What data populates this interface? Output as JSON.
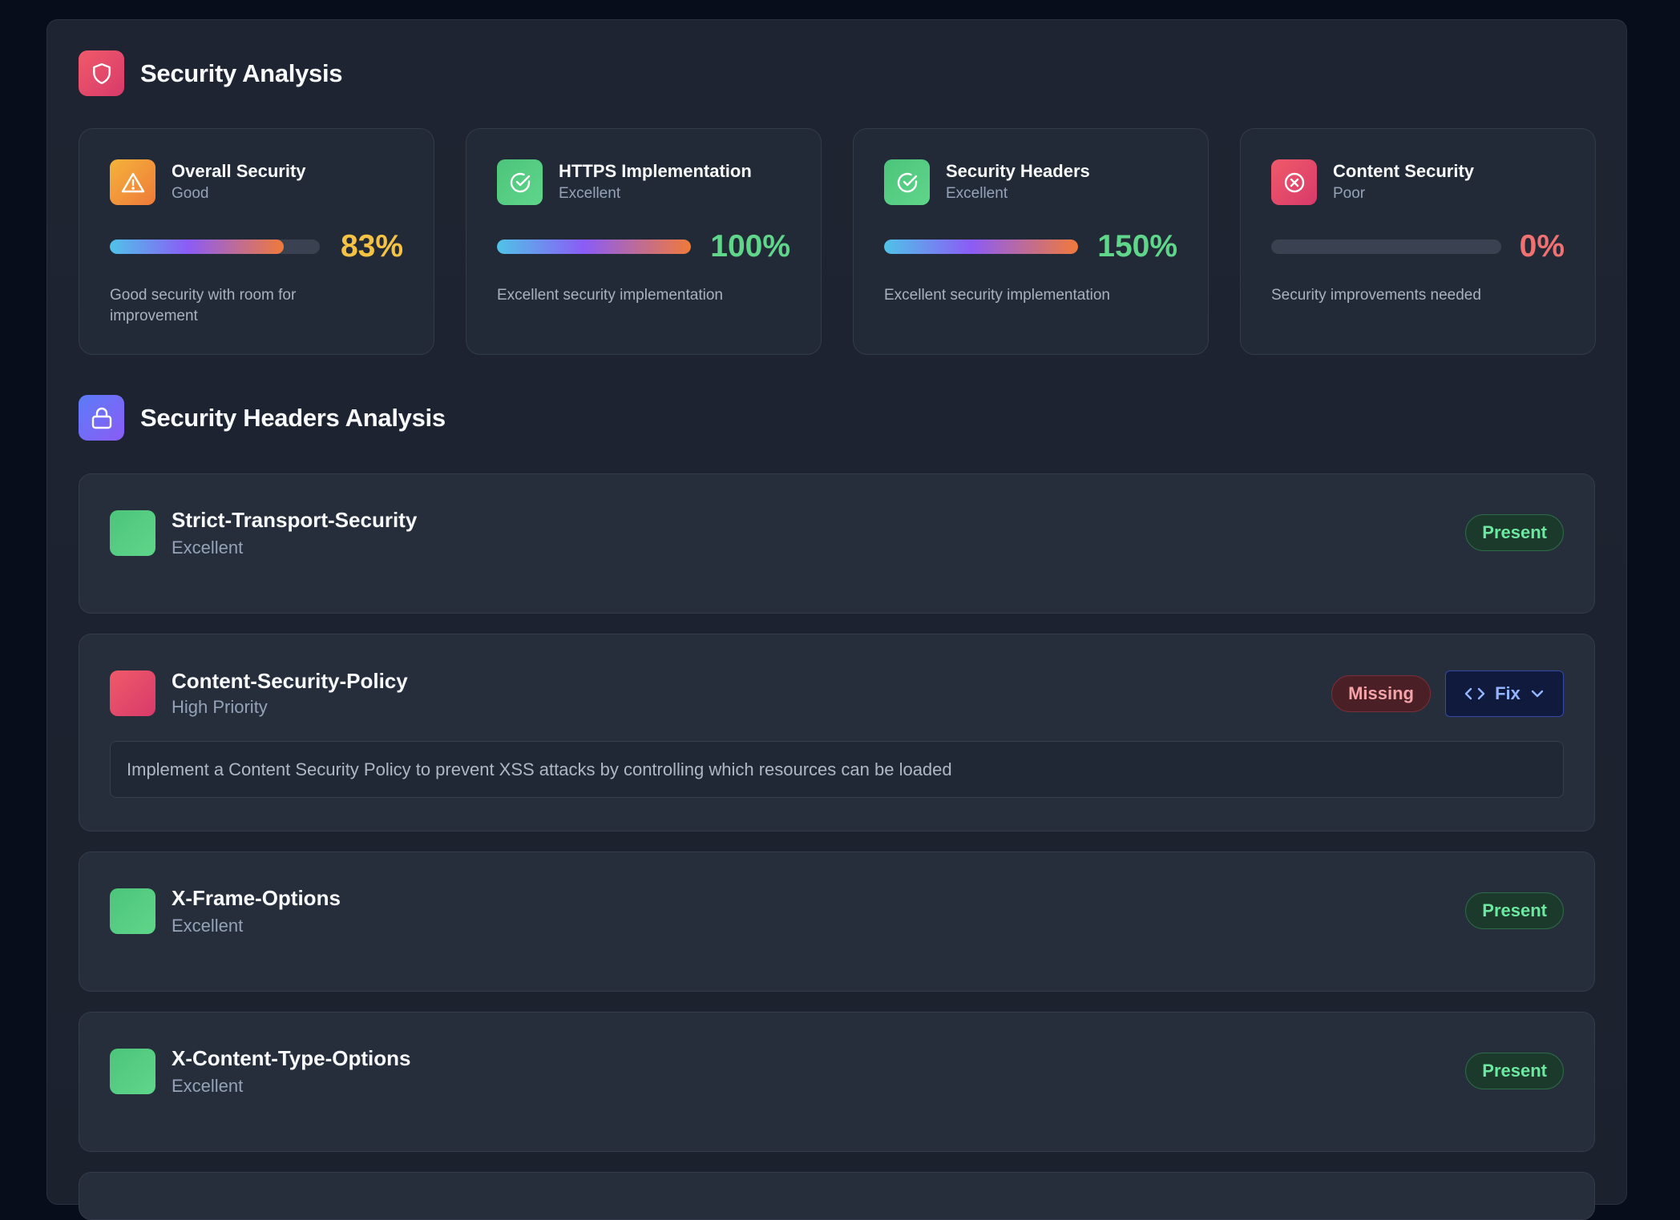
{
  "analysis": {
    "title": "Security Analysis",
    "icon": "shield-icon",
    "accent": "#e0445e"
  },
  "metrics": [
    {
      "name": "Overall Security",
      "rating": "Good",
      "percent": "83%",
      "fill_fraction": 0.83,
      "description": "Good security with room for improvement",
      "icon": "alert-triangle-icon",
      "color": "#f6c244"
    },
    {
      "name": "HTTPS Implementation",
      "rating": "Excellent",
      "percent": "100%",
      "fill_fraction": 1.0,
      "description": "Excellent security implementation",
      "icon": "check-circle-icon",
      "color": "#5fd68a"
    },
    {
      "name": "Security Headers",
      "rating": "Excellent",
      "percent": "150%",
      "fill_fraction": 1.0,
      "description": "Excellent security implementation",
      "icon": "check-circle-icon",
      "color": "#5fd68a"
    },
    {
      "name": "Content Security",
      "rating": "Poor",
      "percent": "0%",
      "fill_fraction": 0.0,
      "description": "Security improvements needed",
      "icon": "x-circle-icon",
      "color": "#f07171"
    }
  ],
  "headers_section": {
    "title": "Security Headers Analysis",
    "icon": "lock-icon",
    "accent": "#7c5cf0"
  },
  "headers": [
    {
      "name": "Strict-Transport-Security",
      "status_text": "Excellent",
      "badge": "Present",
      "state": "present"
    },
    {
      "name": "Content-Security-Policy",
      "status_text": "High Priority",
      "badge": "Missing",
      "state": "missing",
      "fix_label": "Fix",
      "recommendation": "Implement a Content Security Policy to prevent XSS attacks by controlling which resources can be loaded"
    },
    {
      "name": "X-Frame-Options",
      "status_text": "Excellent",
      "badge": "Present",
      "state": "present"
    },
    {
      "name": "X-Content-Type-Options",
      "status_text": "Excellent",
      "badge": "Present",
      "state": "present"
    }
  ]
}
